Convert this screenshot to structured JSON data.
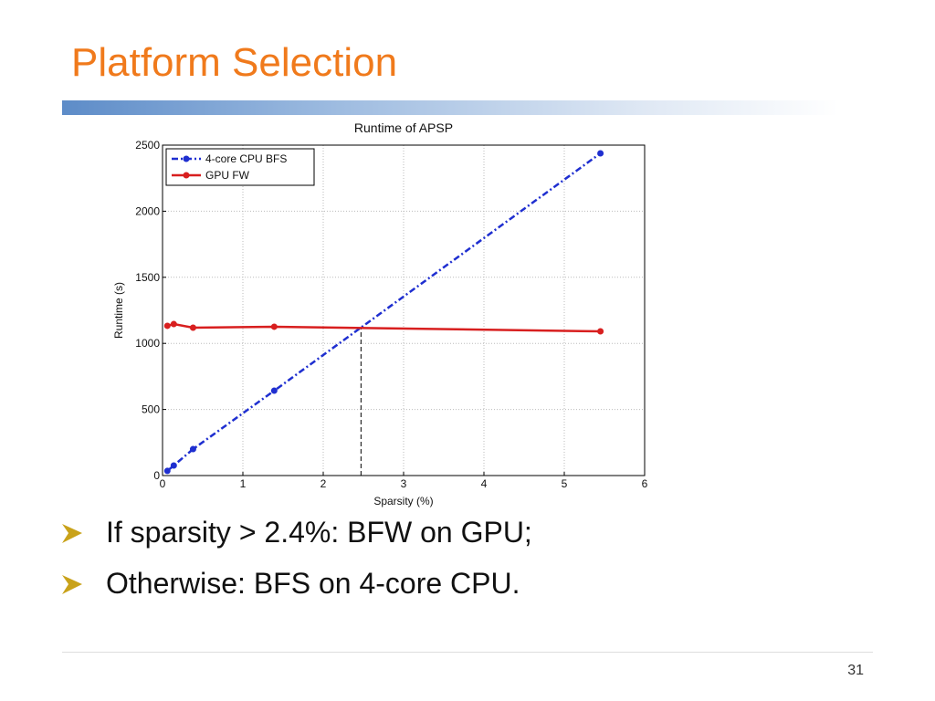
{
  "slide_title": "Platform Selection",
  "bullets": [
    "If sparsity > 2.4%: BFW on GPU;",
    "Otherwise: BFS on 4-core CPU."
  ],
  "page_number": "31",
  "chart_data": {
    "type": "line",
    "title": "Runtime of APSP",
    "x_label": "Sparsity (%)",
    "y_label": "Runtime (s)",
    "xlim": [
      0,
      6
    ],
    "xticks": [
      0,
      1,
      2,
      3,
      4,
      5,
      6
    ],
    "ylim": [
      0,
      2500
    ],
    "yticks": [
      0,
      500,
      1000,
      1500,
      2000,
      2500
    ],
    "grid": true,
    "legend": "upper-left",
    "series": [
      {
        "name": "4-core CPU BFS",
        "color": "#1f2fd0",
        "style": "dashdot",
        "x": [
          0.06,
          0.14,
          0.38,
          1.39,
          5.45
        ],
        "values": [
          35,
          76,
          200,
          642,
          2438
        ]
      },
      {
        "name": "GPU FW",
        "color": "#d81f1f",
        "style": "solid",
        "x": [
          0.06,
          0.14,
          0.38,
          1.39,
          5.45
        ],
        "values": [
          1133,
          1146,
          1119,
          1126,
          1091
        ]
      }
    ],
    "threshold_x": 2.47
  }
}
